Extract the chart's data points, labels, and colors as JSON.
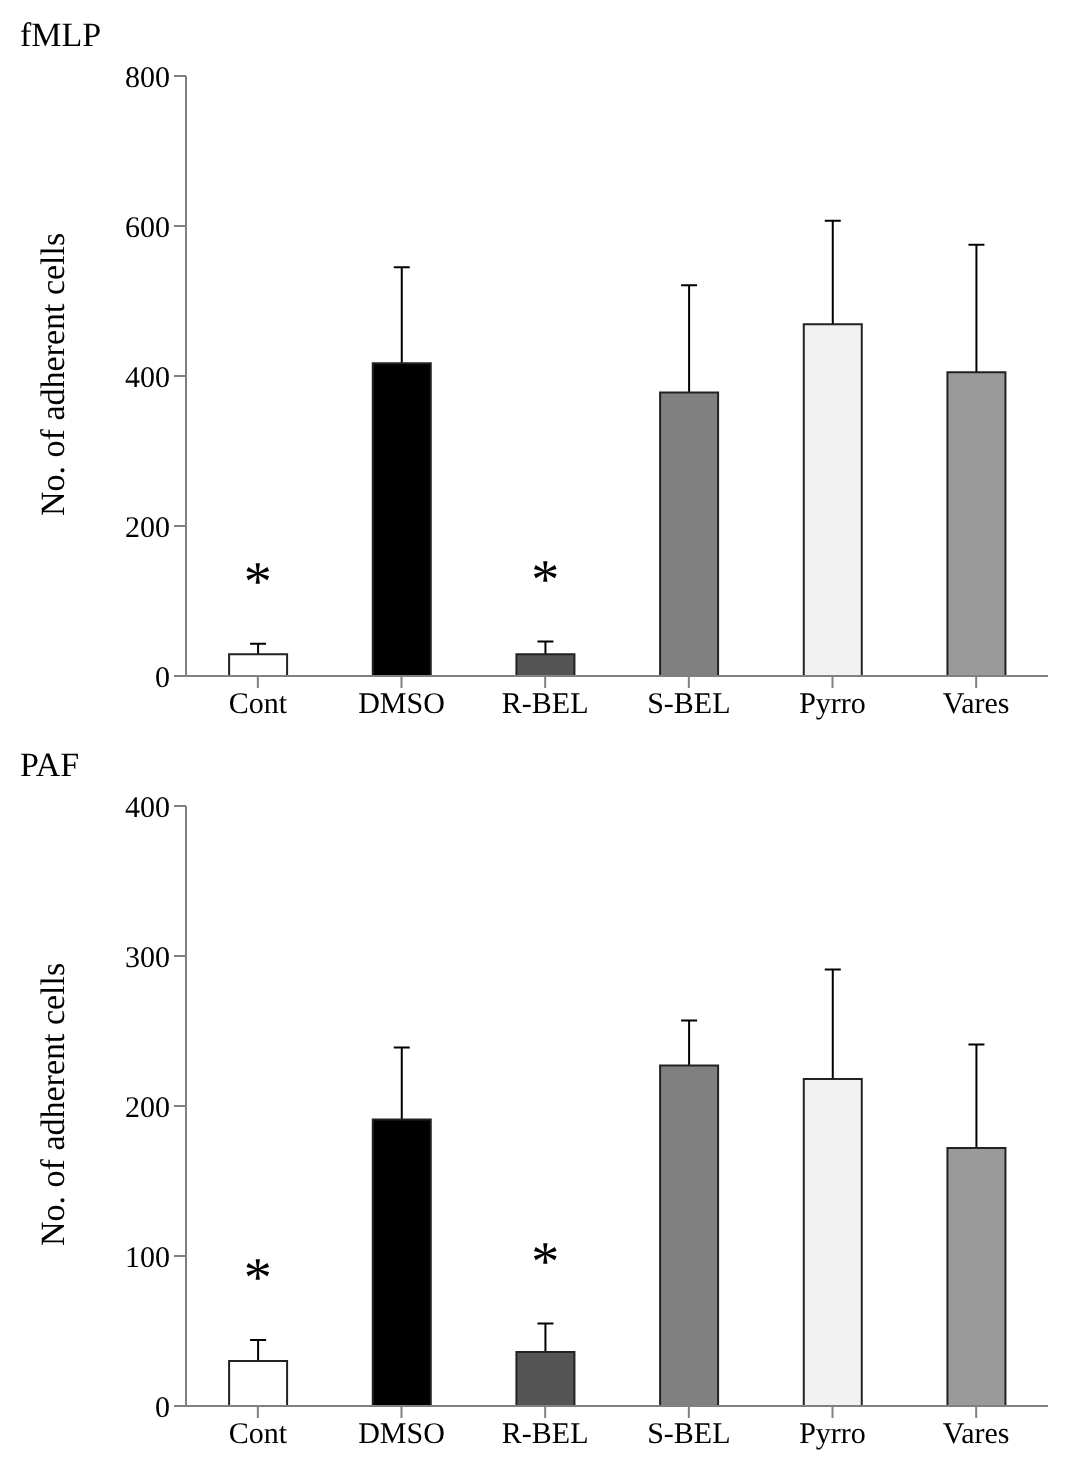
{
  "chart_data": [
    {
      "type": "bar",
      "title": "fMLP",
      "ylabel": "No. of adherent cells",
      "categories": [
        "Cont",
        "DMSO",
        "R-BEL",
        "S-BEL",
        "Pyrro",
        "Vares"
      ],
      "values": [
        29,
        417,
        29,
        378,
        469,
        405
      ],
      "errors": [
        [
          29,
          43
        ],
        [
          417,
          545
        ],
        [
          29,
          46
        ],
        [
          378,
          521
        ],
        [
          469,
          607
        ],
        [
          405,
          575
        ]
      ],
      "colors": [
        "#ffffff",
        "#000000",
        "#555555",
        "#808080",
        "#f2f2f2",
        "#9a9a9a"
      ],
      "ylim": [
        0,
        800
      ],
      "yticks": [
        0,
        200,
        400,
        600,
        800
      ],
      "grid": false,
      "legend": false,
      "annotations": [
        {
          "text": "*",
          "x": "Cont",
          "y": 43
        },
        {
          "text": "*",
          "x": "R-BEL",
          "y": 46
        }
      ]
    },
    {
      "type": "bar",
      "title": "PAF",
      "ylabel": "No. of adherent cells",
      "categories": [
        "Cont",
        "DMSO",
        "R-BEL",
        "S-BEL",
        "Pyrro",
        "Vares"
      ],
      "values": [
        30,
        191,
        36,
        227,
        218,
        172
      ],
      "errors": [
        [
          30,
          44
        ],
        [
          191,
          239
        ],
        [
          36,
          55
        ],
        [
          227,
          257
        ],
        [
          218,
          291
        ],
        [
          172,
          241
        ]
      ],
      "colors": [
        "#ffffff",
        "#000000",
        "#555555",
        "#808080",
        "#f2f2f2",
        "#9a9a9a"
      ],
      "ylim": [
        0,
        400
      ],
      "yticks": [
        0,
        100,
        200,
        300,
        400
      ],
      "grid": false,
      "legend": false,
      "annotations": [
        {
          "text": "*",
          "x": "Cont",
          "y": 44
        },
        {
          "text": "*",
          "x": "R-BEL",
          "y": 55
        }
      ]
    }
  ]
}
